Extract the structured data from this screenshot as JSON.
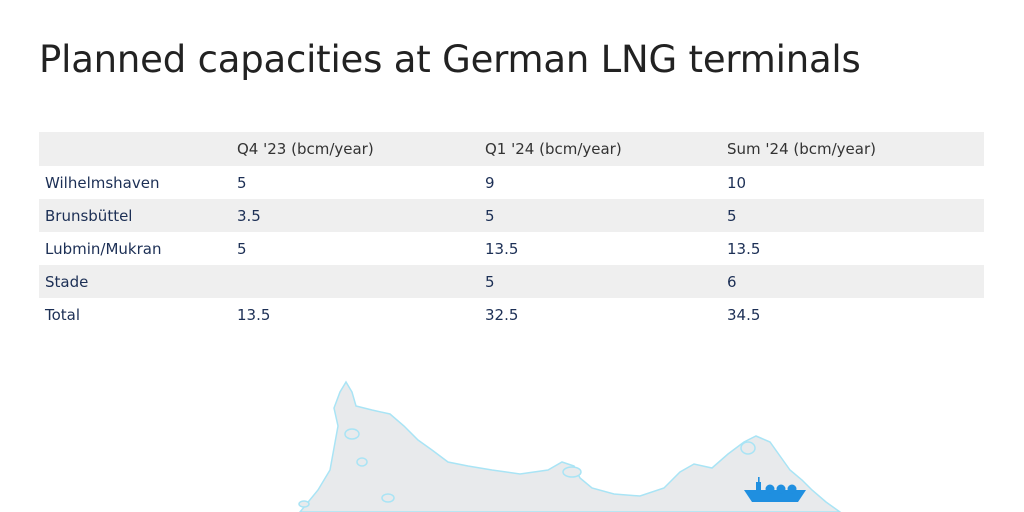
{
  "title": "Planned capacities at German LNG terminals",
  "table": {
    "headers": [
      "",
      "Q4 '23 (bcm/year)",
      "Q1 '24 (bcm/year)",
      "Sum '24 (bcm/year)"
    ],
    "rows": [
      {
        "name": "Wilhelmshaven",
        "q4_23": "5",
        "q1_24": "9",
        "sum_24": "10"
      },
      {
        "name": "Brunsbüttel",
        "q4_23": "3.5",
        "q1_24": "5",
        "sum_24": "5"
      },
      {
        "name": "Lubmin/Mukran",
        "q4_23": "5",
        "q1_24": "13.5",
        "sum_24": "13.5"
      },
      {
        "name": "Stade",
        "q4_23": "",
        "q1_24": "5",
        "sum_24": "6"
      },
      {
        "name": "Total",
        "q4_23": "13.5",
        "q1_24": "32.5",
        "sum_24": "34.5"
      }
    ]
  },
  "map": {
    "icons": [
      "lng-ship-icon"
    ],
    "colors": {
      "land": "#e8eaec",
      "coast": "#a9e4f5",
      "ship": "#1f8fe0"
    }
  }
}
